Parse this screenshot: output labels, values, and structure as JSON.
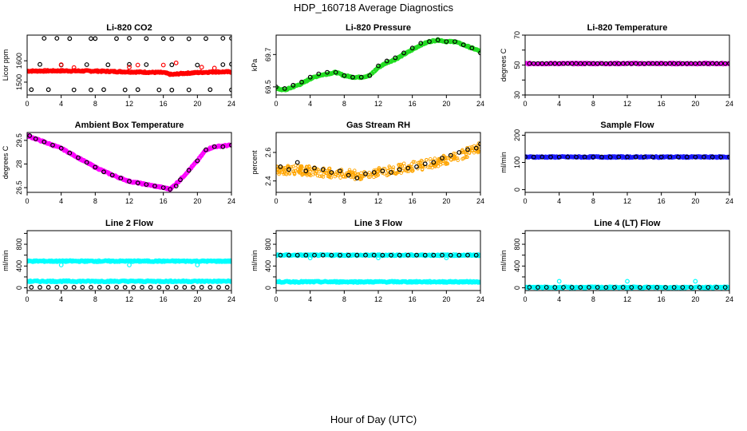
{
  "page": {
    "title": "HDP_160718  Average Diagnostics",
    "x_label": "Hour of Day (UTC)"
  },
  "colors": {
    "black": "#000000",
    "red": "#ff0000",
    "green": "#22dd22",
    "magenta": "#ff00ff",
    "orange": "#ffa500",
    "blue": "#1a1aff",
    "cyan": "#00ffff"
  },
  "chart_data": [
    {
      "id": "li820-co2",
      "type": "scatter",
      "title": "Li-820 CO2",
      "ylabel": "Licor ppm",
      "xlim": [
        0,
        24
      ],
      "ylim": [
        1440,
        1720
      ],
      "xticks": [
        0,
        4,
        8,
        12,
        16,
        20,
        24
      ],
      "yticks": [
        1500,
        1600
      ],
      "series": [
        {
          "style": "dense",
          "color": "#ff0000",
          "x": [
            0,
            4,
            8,
            12,
            16,
            17,
            18,
            20,
            22,
            24
          ],
          "y": [
            1552,
            1553,
            1552,
            1548,
            1545,
            1535,
            1540,
            1545,
            1548,
            1548
          ]
        },
        {
          "style": "points",
          "color": "#000000",
          "x": [
            2,
            3.5,
            5,
            7.5,
            8,
            10.5,
            12,
            14,
            16,
            17,
            19,
            21,
            23,
            24
          ],
          "y": [
            1705,
            1705,
            1704,
            1704,
            1704,
            1704,
            1705,
            1704,
            1704,
            1703,
            1703,
            1704,
            1705,
            1705
          ]
        },
        {
          "style": "points",
          "color": "#000000",
          "x": [
            1.5,
            4,
            7,
            9.5,
            12,
            14,
            17,
            20,
            23,
            24
          ],
          "y": [
            1583,
            1580,
            1582,
            1581,
            1583,
            1582,
            1581,
            1580,
            1582,
            1584
          ]
        },
        {
          "style": "points",
          "color": "#000000",
          "x": [
            0.5,
            2.5,
            5.5,
            7.5,
            9,
            11.5,
            13,
            15.5,
            17,
            19,
            21.5,
            24
          ],
          "y": [
            1465,
            1465,
            1464,
            1464,
            1465,
            1464,
            1465,
            1464,
            1463,
            1464,
            1465,
            1464
          ]
        },
        {
          "style": "points",
          "color": "#ff0000",
          "x": [
            4,
            5.5,
            12,
            13,
            16,
            17.5,
            20.5,
            22
          ],
          "y": [
            1582,
            1568,
            1570,
            1580,
            1580,
            1590,
            1570,
            1566
          ]
        }
      ]
    },
    {
      "id": "li820-pressure",
      "type": "scatter",
      "title": "Li-820 Pressure",
      "ylabel": "kPa",
      "xlim": [
        0,
        24
      ],
      "ylim": [
        69.45,
        69.82
      ],
      "xticks": [
        0,
        4,
        8,
        12,
        16,
        20,
        24
      ],
      "yticks": [
        69.5,
        69.7
      ],
      "series": [
        {
          "style": "dense",
          "color": "#22dd22",
          "x": [
            0,
            1,
            2,
            3,
            4,
            5,
            6,
            7,
            8,
            9,
            10,
            11,
            12,
            13,
            14,
            15,
            16,
            17,
            18,
            19,
            20,
            21,
            22,
            23,
            24
          ],
          "y": [
            69.49,
            69.48,
            69.5,
            69.52,
            69.55,
            69.57,
            69.58,
            69.59,
            69.57,
            69.56,
            69.56,
            69.57,
            69.62,
            69.65,
            69.67,
            69.7,
            69.73,
            69.76,
            69.78,
            69.79,
            69.78,
            69.78,
            69.76,
            69.74,
            69.72
          ]
        },
        {
          "style": "points",
          "color": "#000000",
          "x": [
            0,
            1,
            2,
            3,
            4,
            5,
            6,
            7,
            8,
            9,
            10,
            11,
            12,
            13,
            14,
            15,
            16,
            17,
            18,
            19,
            20,
            21,
            22,
            23,
            24
          ],
          "y": [
            69.5,
            69.49,
            69.51,
            69.53,
            69.56,
            69.58,
            69.59,
            69.59,
            69.57,
            69.56,
            69.56,
            69.57,
            69.63,
            69.66,
            69.68,
            69.71,
            69.74,
            69.77,
            69.78,
            69.79,
            69.78,
            69.78,
            69.76,
            69.74,
            69.71
          ]
        }
      ]
    },
    {
      "id": "li820-temperature",
      "type": "scatter",
      "title": "Li-820 Temperature",
      "ylabel": "degrees C",
      "xlim": [
        0,
        24
      ],
      "ylim": [
        30,
        70
      ],
      "xticks": [
        0,
        4,
        8,
        12,
        16,
        20,
        24
      ],
      "yticks": [
        30,
        40,
        50,
        60,
        70
      ],
      "ytick_labels_shown": [
        30,
        50,
        70
      ],
      "series": [
        {
          "style": "dense",
          "color": "#ff00ff",
          "x": [
            0,
            24
          ],
          "y": [
            51,
            51
          ]
        },
        {
          "style": "points",
          "color": "#000000",
          "x": [
            0.5,
            1,
            1.5,
            2,
            2.5,
            3,
            3.5,
            4,
            4.5,
            5,
            5.5,
            6,
            6.5,
            7,
            7.5,
            8,
            8.5,
            9,
            9.5,
            10,
            10.5,
            11,
            11.5,
            12,
            12.5,
            13,
            13.5,
            14,
            14.5,
            15,
            15.5,
            16,
            16.5,
            17,
            17.5,
            18,
            18.5,
            19,
            19.5,
            20,
            20.5,
            21,
            21.5,
            22,
            22.5,
            23,
            23.5,
            24
          ],
          "y": [
            51,
            51,
            51,
            51,
            51,
            51,
            51,
            51,
            51,
            51,
            51,
            51,
            51,
            51,
            51,
            51,
            51,
            51,
            51,
            51,
            51,
            51,
            51,
            51,
            51,
            51,
            51,
            51,
            51,
            51,
            51,
            51,
            51,
            51,
            51,
            51,
            51,
            51,
            51,
            51,
            51,
            51,
            51,
            51,
            51,
            51,
            51,
            51
          ]
        }
      ]
    },
    {
      "id": "ambient-box-temperature",
      "type": "scatter",
      "title": "Ambient Box Temperature",
      "ylabel": "degrees C",
      "xlim": [
        0,
        24
      ],
      "ylim": [
        26.2,
        30.0
      ],
      "xticks": [
        0,
        4,
        8,
        12,
        16,
        20,
        24
      ],
      "yticks": [
        26.5,
        28.0,
        29.5
      ],
      "series": [
        {
          "style": "dense",
          "color": "#ff00ff",
          "x": [
            0,
            2,
            4,
            6,
            8,
            10,
            12,
            14,
            16,
            16.8,
            18,
            20,
            21,
            22,
            24
          ],
          "y": [
            29.8,
            29.4,
            29.0,
            28.4,
            27.8,
            27.3,
            26.9,
            26.7,
            26.5,
            26.4,
            27.0,
            28.2,
            28.9,
            29.1,
            29.2
          ]
        },
        {
          "style": "points",
          "color": "#000000",
          "x": [
            0.3,
            1,
            2,
            3,
            4,
            5,
            6,
            7,
            8,
            9,
            10,
            11,
            12,
            13,
            14,
            15,
            16,
            16.8,
            17.5,
            18,
            19,
            20,
            21,
            22,
            23,
            24
          ],
          "y": [
            29.8,
            29.6,
            29.4,
            29.2,
            29.0,
            28.7,
            28.4,
            28.1,
            27.8,
            27.5,
            27.3,
            27.1,
            26.9,
            26.8,
            26.7,
            26.6,
            26.5,
            26.4,
            26.6,
            27.0,
            27.6,
            28.2,
            28.9,
            29.1,
            29.1,
            29.2
          ]
        }
      ]
    },
    {
      "id": "gas-stream-rh",
      "type": "scatter",
      "title": "Gas Stream RH",
      "ylabel": "percent",
      "xlim": [
        0,
        24
      ],
      "ylim": [
        2.32,
        2.74
      ],
      "xticks": [
        0,
        4,
        8,
        12,
        16,
        20,
        24
      ],
      "yticks": [
        2.4,
        2.6
      ],
      "series": [
        {
          "style": "band",
          "color": "#ffa500",
          "x": [
            0,
            2,
            4,
            6,
            8,
            10,
            12,
            14,
            16,
            18,
            20,
            22,
            24
          ],
          "y": [
            2.48,
            2.48,
            2.47,
            2.46,
            2.45,
            2.44,
            2.46,
            2.48,
            2.5,
            2.52,
            2.55,
            2.59,
            2.64
          ]
        },
        {
          "style": "points",
          "color": "#000000",
          "x": [
            0.5,
            1.5,
            2.5,
            3.5,
            4.5,
            5.5,
            6.5,
            7.5,
            8.5,
            9.5,
            10.5,
            11.5,
            12.5,
            13.5,
            14.5,
            15.5,
            16.5,
            17.5,
            18.5,
            19.5,
            20.5,
            21.5,
            22.5,
            23.5,
            24
          ],
          "y": [
            2.5,
            2.48,
            2.53,
            2.47,
            2.49,
            2.48,
            2.46,
            2.47,
            2.44,
            2.42,
            2.45,
            2.46,
            2.47,
            2.46,
            2.48,
            2.49,
            2.5,
            2.52,
            2.53,
            2.56,
            2.58,
            2.6,
            2.62,
            2.63,
            2.66
          ]
        }
      ]
    },
    {
      "id": "sample-flow",
      "type": "scatter",
      "title": "Sample Flow",
      "ylabel": "ml/min",
      "xlim": [
        0,
        24
      ],
      "ylim": [
        -10,
        210
      ],
      "xticks": [
        0,
        4,
        8,
        12,
        16,
        20,
        24
      ],
      "yticks": [
        0,
        100,
        200
      ],
      "series": [
        {
          "style": "dense",
          "color": "#1a1aff",
          "x": [
            0,
            24
          ],
          "y": [
            120,
            120
          ]
        },
        {
          "style": "points",
          "color": "#000000",
          "x": [
            0,
            1,
            2,
            3,
            4,
            5,
            6,
            7,
            8,
            9,
            10,
            11,
            12,
            13,
            14,
            15,
            16,
            17,
            18,
            19,
            20,
            21,
            22,
            23,
            24
          ],
          "y": [
            120,
            120,
            120,
            120,
            120,
            120,
            120,
            120,
            120,
            120,
            120,
            120,
            120,
            120,
            120,
            120,
            120,
            120,
            120,
            120,
            120,
            120,
            120,
            120,
            120
          ]
        }
      ]
    },
    {
      "id": "line2-flow",
      "type": "scatter",
      "title": "Line 2 Flow",
      "ylabel": "ml/min",
      "xlim": [
        0,
        24
      ],
      "ylim": [
        -50,
        1050
      ],
      "xticks": [
        0,
        4,
        8,
        12,
        16,
        20,
        24
      ],
      "yticks": [
        0,
        200,
        400,
        600,
        800,
        1000
      ],
      "ytick_labels_shown": [
        0,
        400,
        800
      ],
      "series": [
        {
          "style": "dense",
          "color": "#00ffff",
          "x": [
            0,
            24
          ],
          "y": [
            490,
            490
          ]
        },
        {
          "style": "dense",
          "color": "#00ffff",
          "x": [
            0,
            24
          ],
          "y": [
            120,
            120
          ]
        },
        {
          "style": "points",
          "color": "#000000",
          "x": [
            0.5,
            1.5,
            2.5,
            3.5,
            4.5,
            5.5,
            6.5,
            7.5,
            8.5,
            9.5,
            10.5,
            11.5,
            12.5,
            13.5,
            14.5,
            15.5,
            16.5,
            17.5,
            18.5,
            19.5,
            20.5,
            21.5,
            22.5,
            23.5
          ],
          "y": [
            10,
            10,
            10,
            10,
            10,
            10,
            10,
            10,
            10,
            10,
            10,
            10,
            10,
            10,
            10,
            10,
            10,
            10,
            10,
            10,
            10,
            10,
            10,
            10
          ]
        },
        {
          "style": "points",
          "color": "#00ffff",
          "x": [
            4,
            12,
            20
          ],
          "y": [
            420,
            420,
            420
          ]
        }
      ]
    },
    {
      "id": "line3-flow",
      "type": "scatter",
      "title": "Line 3 Flow",
      "ylabel": "ml/min",
      "xlim": [
        0,
        24
      ],
      "ylim": [
        -50,
        1050
      ],
      "xticks": [
        0,
        4,
        8,
        12,
        16,
        20,
        24
      ],
      "yticks": [
        0,
        200,
        400,
        600,
        800,
        1000
      ],
      "ytick_labels_shown": [
        0,
        400,
        800
      ],
      "series": [
        {
          "style": "dense",
          "color": "#00ffff",
          "x": [
            0,
            24
          ],
          "y": [
            600,
            600
          ]
        },
        {
          "style": "dense",
          "color": "#00ffff",
          "x": [
            0,
            24
          ],
          "y": [
            110,
            110
          ]
        },
        {
          "style": "points",
          "color": "#000000",
          "x": [
            0.5,
            1.5,
            2.5,
            3.5,
            4.5,
            5.5,
            6.5,
            7.5,
            8.5,
            9.5,
            10.5,
            11.5,
            12.5,
            13.5,
            14.5,
            15.5,
            16.5,
            17.5,
            18.5,
            19.5,
            20.5,
            21.5,
            22.5,
            23.5
          ],
          "y": [
            600,
            600,
            600,
            600,
            600,
            600,
            600,
            600,
            600,
            600,
            600,
            600,
            600,
            600,
            600,
            600,
            600,
            600,
            600,
            600,
            600,
            600,
            600,
            600
          ]
        },
        {
          "style": "points",
          "color": "#00ffff",
          "x": [
            0,
            4,
            12,
            20
          ],
          "y": [
            600,
            550,
            550,
            550
          ]
        }
      ]
    },
    {
      "id": "line4-flow",
      "type": "scatter",
      "title": "Line 4 (LT) Flow",
      "ylabel": "ml/min",
      "xlim": [
        0,
        24
      ],
      "ylim": [
        -50,
        1050
      ],
      "xticks": [
        0,
        4,
        8,
        12,
        16,
        20,
        24
      ],
      "yticks": [
        0,
        200,
        400,
        600,
        800,
        1000
      ],
      "ytick_labels_shown": [
        0,
        400,
        800
      ],
      "series": [
        {
          "style": "dense",
          "color": "#00ffff",
          "x": [
            0,
            24
          ],
          "y": [
            8,
            8
          ]
        },
        {
          "style": "points",
          "color": "#000000",
          "x": [
            0.5,
            1.5,
            2.5,
            3.5,
            4.5,
            5.5,
            6.5,
            7.5,
            8.5,
            9.5,
            10.5,
            11.5,
            12.5,
            13.5,
            14.5,
            15.5,
            16.5,
            17.5,
            18.5,
            19.5,
            20.5,
            21.5,
            22.5,
            23.5
          ],
          "y": [
            8,
            8,
            8,
            8,
            8,
            8,
            8,
            8,
            8,
            8,
            8,
            8,
            8,
            8,
            8,
            8,
            8,
            8,
            8,
            8,
            8,
            8,
            8,
            8
          ]
        },
        {
          "style": "points",
          "color": "#00ffff",
          "x": [
            0,
            4,
            12,
            20
          ],
          "y": [
            8,
            120,
            120,
            120
          ]
        }
      ]
    }
  ]
}
